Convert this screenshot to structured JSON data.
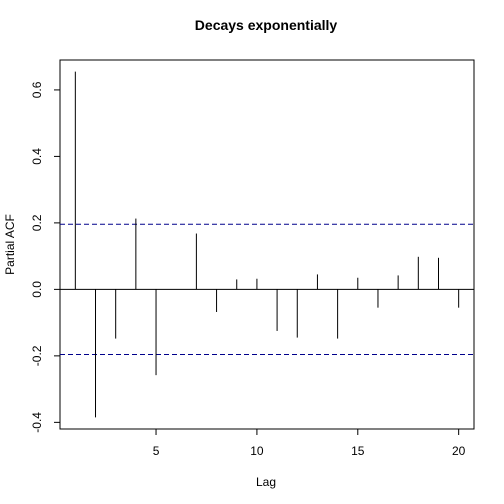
{
  "chart_data": {
    "type": "bar",
    "title": "Decays exponentially",
    "xlabel": "Lag",
    "ylabel": "Partial ACF",
    "xlim": [
      0.24,
      20.76
    ],
    "ylim": [
      -0.42,
      0.69
    ],
    "x_ticks": [
      5,
      10,
      15,
      20
    ],
    "y_ticks": [
      -0.4,
      -0.2,
      0.0,
      0.2,
      0.4,
      0.6
    ],
    "x_tick_labels": [
      "5",
      "10",
      "15",
      "20"
    ],
    "y_tick_labels": [
      "-0.4",
      "-0.2",
      "0.0",
      "0.2",
      "0.4",
      "0.6"
    ],
    "confidence_bounds": [
      0.196,
      -0.196
    ],
    "lags": [
      1,
      2,
      3,
      4,
      5,
      6,
      7,
      8,
      9,
      10,
      11,
      12,
      13,
      14,
      15,
      16,
      17,
      18,
      19,
      20
    ],
    "values": [
      0.655,
      -0.385,
      -0.148,
      0.213,
      -0.258,
      0.0,
      0.168,
      -0.068,
      0.03,
      0.032,
      -0.125,
      -0.145,
      0.045,
      -0.148,
      0.035,
      -0.055,
      0.042,
      0.098,
      0.095,
      -0.055
    ],
    "grid": false,
    "colors": {
      "bars": "#000000",
      "bounds": "#00008b",
      "axis": "#000000"
    }
  }
}
